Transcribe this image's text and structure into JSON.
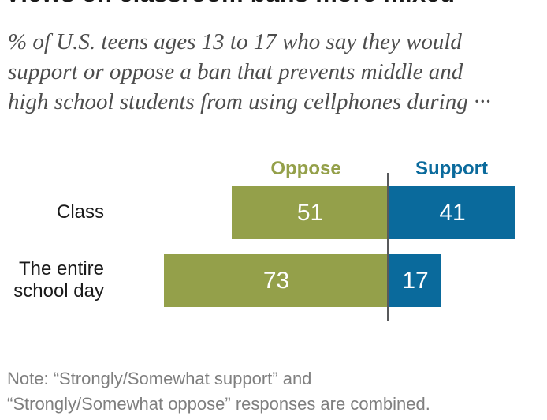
{
  "title": "Views on classroom bans more mixed",
  "subtitle": {
    "lines": [
      "% of U.S. teens ages 13 to 17 who say they would",
      "support or oppose a ban that prevents middle and",
      "high school students from using cellphones during ···"
    ]
  },
  "chart_data": {
    "type": "bar",
    "subtype": "diverging-horizontal",
    "title": "Views on classroom bans more mixed",
    "categories": [
      "Class",
      "The entire school day"
    ],
    "series": [
      {
        "name": "Oppose",
        "color": "#94a04a",
        "values": [
          51,
          73
        ]
      },
      {
        "name": "Support",
        "color": "#0a6a9c",
        "values": [
          41,
          17
        ]
      }
    ],
    "value_unit": "%",
    "xlim": [
      0,
      100
    ],
    "legend_position": "top",
    "grid": false,
    "value_labels": "inside-white"
  },
  "display": {
    "category_lines": [
      [
        "Class"
      ],
      [
        "The entire",
        "school day"
      ]
    ]
  },
  "note": {
    "lines": [
      "Note: “Strongly/Somewhat support” and",
      "“Strongly/Somewhat oppose” responses are combined."
    ]
  },
  "colors": {
    "oppose": "#94a04a",
    "support": "#0a6a9c",
    "axis_line": "#58595b",
    "title_text": "#1a1a1a",
    "subtitle_text": "#4d4d4d",
    "note_text": "#7f7f7f"
  }
}
